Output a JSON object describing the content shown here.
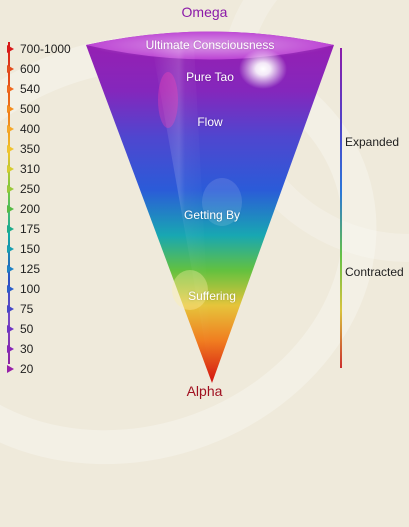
{
  "header": {
    "top_title": "Omega",
    "bottom_title": "Alpha"
  },
  "scale": {
    "labels": [
      "700-1000",
      "600",
      "540",
      "500",
      "400",
      "350",
      "310",
      "250",
      "200",
      "175",
      "150",
      "125",
      "100",
      "75",
      "50",
      "30",
      "20"
    ]
  },
  "cone": {
    "stages": [
      {
        "label": "Ultimate Consciousness"
      },
      {
        "label": "Pure Tao"
      },
      {
        "label": "Flow"
      },
      {
        "label": "Getting By"
      },
      {
        "label": "Suffering"
      }
    ]
  },
  "side_labels": {
    "expanded": "Expanded",
    "contracted": "Contracted"
  },
  "colors": {
    "background": "#efeadb",
    "top_title": "#8b1aa8",
    "bottom_title": "#a01020",
    "cone_top": "#9a1eb0",
    "cone_mid": "#2b5bd8",
    "cone_green": "#63c13f",
    "cone_yellow": "#e6c43b",
    "cone_bottom": "#d31212"
  }
}
